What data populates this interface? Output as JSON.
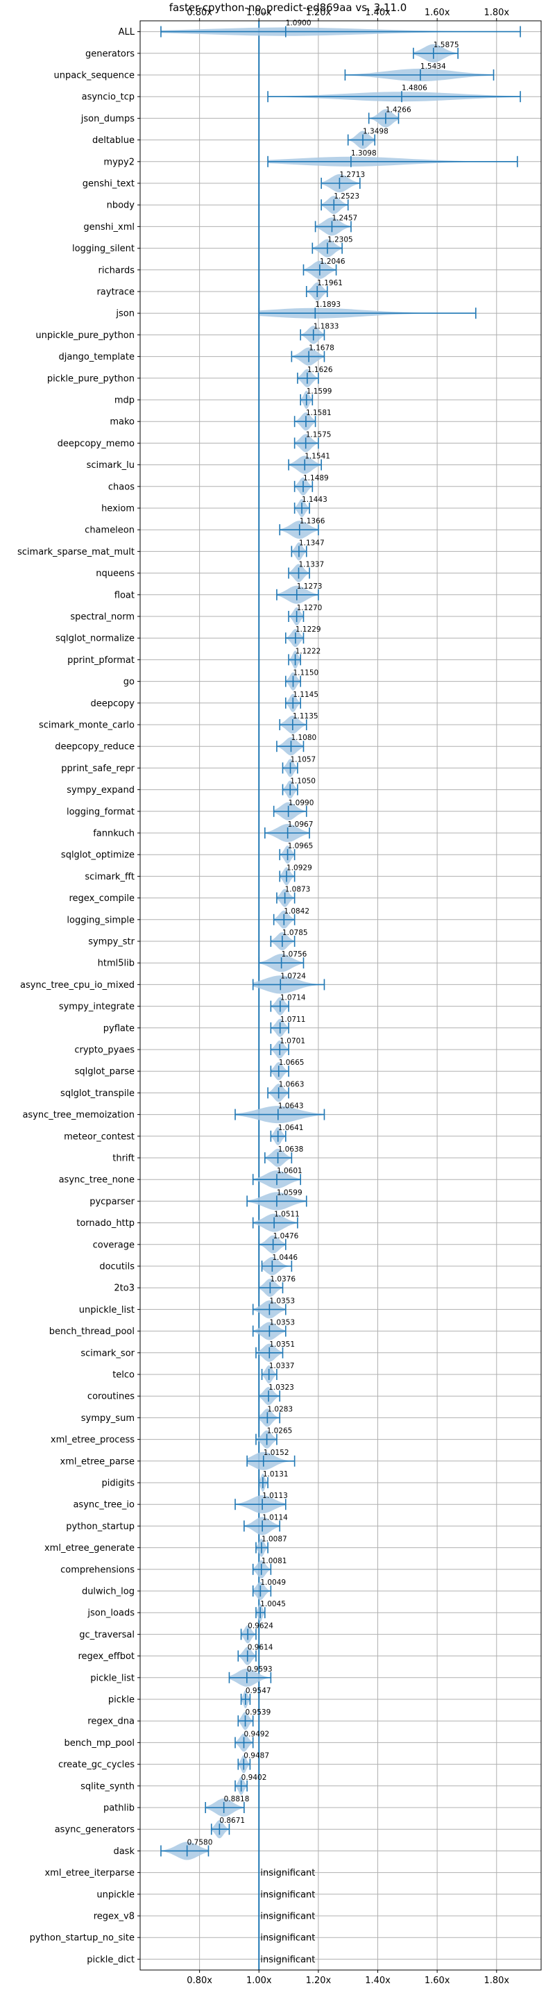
{
  "chart_data": {
    "type": "violin",
    "title": "faster-cpython-no_predict-ed869aa vs. 3.11.0",
    "x_tick_labels": [
      "0.80x",
      "1.00x",
      "1.20x",
      "1.40x",
      "1.60x",
      "1.80x"
    ],
    "x_ticks": [
      0.8,
      1.0,
      1.2,
      1.4,
      1.6,
      1.8
    ],
    "xlim": [
      0.6,
      1.95
    ],
    "reference_line": 1.0,
    "grid": true,
    "insignificant_label": "insignificant",
    "rows": [
      {
        "name": "ALL",
        "mean": 1.09,
        "label": "1.0900",
        "min": 0.67,
        "max": 1.88
      },
      {
        "name": "generators",
        "mean": 1.5875,
        "label": "1.5875",
        "min": 1.52,
        "max": 1.67
      },
      {
        "name": "unpack_sequence",
        "mean": 1.5434,
        "label": "1.5434",
        "min": 1.29,
        "max": 1.79
      },
      {
        "name": "asyncio_tcp",
        "mean": 1.4806,
        "label": "1.4806",
        "min": 1.03,
        "max": 1.88
      },
      {
        "name": "json_dumps",
        "mean": 1.4266,
        "label": "1.4266",
        "min": 1.37,
        "max": 1.47
      },
      {
        "name": "deltablue",
        "mean": 1.3498,
        "label": "1.3498",
        "min": 1.3,
        "max": 1.39
      },
      {
        "name": "mypy2",
        "mean": 1.3098,
        "label": "1.3098",
        "min": 1.03,
        "max": 1.87
      },
      {
        "name": "genshi_text",
        "mean": 1.2713,
        "label": "1.2713",
        "min": 1.21,
        "max": 1.34
      },
      {
        "name": "nbody",
        "mean": 1.2523,
        "label": "1.2523",
        "min": 1.21,
        "max": 1.3
      },
      {
        "name": "genshi_xml",
        "mean": 1.2457,
        "label": "1.2457",
        "min": 1.19,
        "max": 1.31
      },
      {
        "name": "logging_silent",
        "mean": 1.2305,
        "label": "1.2305",
        "min": 1.18,
        "max": 1.28
      },
      {
        "name": "richards",
        "mean": 1.2046,
        "label": "1.2046",
        "min": 1.15,
        "max": 1.26
      },
      {
        "name": "raytrace",
        "mean": 1.1961,
        "label": "1.1961",
        "min": 1.16,
        "max": 1.23
      },
      {
        "name": "json",
        "mean": 1.1893,
        "label": "1.1893",
        "min": 1.0,
        "max": 1.73
      },
      {
        "name": "unpickle_pure_python",
        "mean": 1.1833,
        "label": "1.1833",
        "min": 1.14,
        "max": 1.22
      },
      {
        "name": "django_template",
        "mean": 1.1678,
        "label": "1.1678",
        "min": 1.11,
        "max": 1.22
      },
      {
        "name": "pickle_pure_python",
        "mean": 1.1626,
        "label": "1.1626",
        "min": 1.13,
        "max": 1.2
      },
      {
        "name": "mdp",
        "mean": 1.1599,
        "label": "1.1599",
        "min": 1.14,
        "max": 1.18
      },
      {
        "name": "mako",
        "mean": 1.1581,
        "label": "1.1581",
        "min": 1.12,
        "max": 1.19
      },
      {
        "name": "deepcopy_memo",
        "mean": 1.1575,
        "label": "1.1575",
        "min": 1.12,
        "max": 1.2
      },
      {
        "name": "scimark_lu",
        "mean": 1.1541,
        "label": "1.1541",
        "min": 1.1,
        "max": 1.21
      },
      {
        "name": "chaos",
        "mean": 1.1489,
        "label": "1.1489",
        "min": 1.12,
        "max": 1.18
      },
      {
        "name": "hexiom",
        "mean": 1.1443,
        "label": "1.1443",
        "min": 1.12,
        "max": 1.17
      },
      {
        "name": "chameleon",
        "mean": 1.1366,
        "label": "1.1366",
        "min": 1.07,
        "max": 1.2
      },
      {
        "name": "scimark_sparse_mat_mult",
        "mean": 1.1347,
        "label": "1.1347",
        "min": 1.11,
        "max": 1.16
      },
      {
        "name": "nqueens",
        "mean": 1.1337,
        "label": "1.1337",
        "min": 1.1,
        "max": 1.17
      },
      {
        "name": "float",
        "mean": 1.1273,
        "label": "1.1273",
        "min": 1.06,
        "max": 1.2
      },
      {
        "name": "spectral_norm",
        "mean": 1.127,
        "label": "1.1270",
        "min": 1.1,
        "max": 1.15
      },
      {
        "name": "sqlglot_normalize",
        "mean": 1.1229,
        "label": "1.1229",
        "min": 1.09,
        "max": 1.15
      },
      {
        "name": "pprint_pformat",
        "mean": 1.1222,
        "label": "1.1222",
        "min": 1.1,
        "max": 1.14
      },
      {
        "name": "go",
        "mean": 1.115,
        "label": "1.1150",
        "min": 1.09,
        "max": 1.14
      },
      {
        "name": "deepcopy",
        "mean": 1.1145,
        "label": "1.1145",
        "min": 1.09,
        "max": 1.14
      },
      {
        "name": "scimark_monte_carlo",
        "mean": 1.1135,
        "label": "1.1135",
        "min": 1.07,
        "max": 1.16
      },
      {
        "name": "deepcopy_reduce",
        "mean": 1.108,
        "label": "1.1080",
        "min": 1.06,
        "max": 1.15
      },
      {
        "name": "pprint_safe_repr",
        "mean": 1.1057,
        "label": "1.1057",
        "min": 1.08,
        "max": 1.13
      },
      {
        "name": "sympy_expand",
        "mean": 1.105,
        "label": "1.1050",
        "min": 1.08,
        "max": 1.13
      },
      {
        "name": "logging_format",
        "mean": 1.099,
        "label": "1.0990",
        "min": 1.05,
        "max": 1.16
      },
      {
        "name": "fannkuch",
        "mean": 1.0967,
        "label": "1.0967",
        "min": 1.02,
        "max": 1.17
      },
      {
        "name": "sqlglot_optimize",
        "mean": 1.0965,
        "label": "1.0965",
        "min": 1.07,
        "max": 1.12
      },
      {
        "name": "scimark_fft",
        "mean": 1.0929,
        "label": "1.0929",
        "min": 1.07,
        "max": 1.12
      },
      {
        "name": "regex_compile",
        "mean": 1.0873,
        "label": "1.0873",
        "min": 1.06,
        "max": 1.12
      },
      {
        "name": "logging_simple",
        "mean": 1.0842,
        "label": "1.0842",
        "min": 1.05,
        "max": 1.12
      },
      {
        "name": "sympy_str",
        "mean": 1.0785,
        "label": "1.0785",
        "min": 1.04,
        "max": 1.12
      },
      {
        "name": "html5lib",
        "mean": 1.0756,
        "label": "1.0756",
        "min": 1.0,
        "max": 1.15
      },
      {
        "name": "async_tree_cpu_io_mixed",
        "mean": 1.0724,
        "label": "1.0724",
        "min": 0.98,
        "max": 1.22
      },
      {
        "name": "sympy_integrate",
        "mean": 1.0714,
        "label": "1.0714",
        "min": 1.04,
        "max": 1.1
      },
      {
        "name": "pyflate",
        "mean": 1.0711,
        "label": "1.0711",
        "min": 1.04,
        "max": 1.1
      },
      {
        "name": "crypto_pyaes",
        "mean": 1.0701,
        "label": "1.0701",
        "min": 1.04,
        "max": 1.1
      },
      {
        "name": "sqlglot_parse",
        "mean": 1.0665,
        "label": "1.0665",
        "min": 1.04,
        "max": 1.1
      },
      {
        "name": "sqlglot_transpile",
        "mean": 1.0663,
        "label": "1.0663",
        "min": 1.03,
        "max": 1.1
      },
      {
        "name": "async_tree_memoization",
        "mean": 1.0643,
        "label": "1.0643",
        "min": 0.92,
        "max": 1.22
      },
      {
        "name": "meteor_contest",
        "mean": 1.0641,
        "label": "1.0641",
        "min": 1.04,
        "max": 1.09
      },
      {
        "name": "thrift",
        "mean": 1.0638,
        "label": "1.0638",
        "min": 1.02,
        "max": 1.11
      },
      {
        "name": "async_tree_none",
        "mean": 1.0601,
        "label": "1.0601",
        "min": 0.98,
        "max": 1.14
      },
      {
        "name": "pycparser",
        "mean": 1.0599,
        "label": "1.0599",
        "min": 0.96,
        "max": 1.16
      },
      {
        "name": "tornado_http",
        "mean": 1.0511,
        "label": "1.0511",
        "min": 0.98,
        "max": 1.13
      },
      {
        "name": "coverage",
        "mean": 1.0476,
        "label": "1.0476",
        "min": 1.0,
        "max": 1.09
      },
      {
        "name": "docutils",
        "mean": 1.0446,
        "label": "1.0446",
        "min": 1.01,
        "max": 1.11
      },
      {
        "name": "2to3",
        "mean": 1.0376,
        "label": "1.0376",
        "min": 1.0,
        "max": 1.08
      },
      {
        "name": "unpickle_list",
        "mean": 1.0353,
        "label": "1.0353",
        "min": 0.98,
        "max": 1.09
      },
      {
        "name": "bench_thread_pool",
        "mean": 1.0353,
        "label": "1.0353",
        "min": 0.98,
        "max": 1.09
      },
      {
        "name": "scimark_sor",
        "mean": 1.0351,
        "label": "1.0351",
        "min": 0.99,
        "max": 1.08
      },
      {
        "name": "telco",
        "mean": 1.0337,
        "label": "1.0337",
        "min": 1.01,
        "max": 1.06
      },
      {
        "name": "coroutines",
        "mean": 1.0323,
        "label": "1.0323",
        "min": 1.0,
        "max": 1.07
      },
      {
        "name": "sympy_sum",
        "mean": 1.0283,
        "label": "1.0283",
        "min": 1.0,
        "max": 1.07
      },
      {
        "name": "xml_etree_process",
        "mean": 1.0265,
        "label": "1.0265",
        "min": 0.99,
        "max": 1.06
      },
      {
        "name": "xml_etree_parse",
        "mean": 1.0152,
        "label": "1.0152",
        "min": 0.96,
        "max": 1.12
      },
      {
        "name": "pidigits",
        "mean": 1.0131,
        "label": "1.0131",
        "min": 1.0,
        "max": 1.03
      },
      {
        "name": "async_tree_io",
        "mean": 1.0113,
        "label": "1.0113",
        "min": 0.92,
        "max": 1.09
      },
      {
        "name": "python_startup",
        "mean": 1.0114,
        "label": "1.0114",
        "min": 0.95,
        "max": 1.07
      },
      {
        "name": "xml_etree_generate",
        "mean": 1.0087,
        "label": "1.0087",
        "min": 0.99,
        "max": 1.03
      },
      {
        "name": "comprehensions",
        "mean": 1.0081,
        "label": "1.0081",
        "min": 0.98,
        "max": 1.04
      },
      {
        "name": "dulwich_log",
        "mean": 1.0049,
        "label": "1.0049",
        "min": 0.98,
        "max": 1.04
      },
      {
        "name": "json_loads",
        "mean": 1.0045,
        "label": "1.0045",
        "min": 0.99,
        "max": 1.02
      },
      {
        "name": "gc_traversal",
        "mean": 0.9624,
        "label": "0.9624",
        "min": 0.94,
        "max": 0.99
      },
      {
        "name": "regex_effbot",
        "mean": 0.9614,
        "label": "0.9614",
        "min": 0.93,
        "max": 0.99
      },
      {
        "name": "pickle_list",
        "mean": 0.9593,
        "label": "0.9593",
        "min": 0.9,
        "max": 1.04
      },
      {
        "name": "pickle",
        "mean": 0.9547,
        "label": "0.9547",
        "min": 0.94,
        "max": 0.97
      },
      {
        "name": "regex_dna",
        "mean": 0.9539,
        "label": "0.9539",
        "min": 0.93,
        "max": 0.98
      },
      {
        "name": "bench_mp_pool",
        "mean": 0.9492,
        "label": "0.9492",
        "min": 0.92,
        "max": 0.98
      },
      {
        "name": "create_gc_cycles",
        "mean": 0.9487,
        "label": "0.9487",
        "min": 0.93,
        "max": 0.97
      },
      {
        "name": "sqlite_synth",
        "mean": 0.9402,
        "label": "0.9402",
        "min": 0.92,
        "max": 0.96
      },
      {
        "name": "pathlib",
        "mean": 0.8818,
        "label": "0.8818",
        "min": 0.82,
        "max": 0.95
      },
      {
        "name": "async_generators",
        "mean": 0.8671,
        "label": "0.8671",
        "min": 0.84,
        "max": 0.9
      },
      {
        "name": "dask",
        "mean": 0.758,
        "label": "0.7580",
        "min": 0.67,
        "max": 0.83
      },
      {
        "name": "xml_etree_iterparse",
        "insignificant": true
      },
      {
        "name": "unpickle",
        "insignificant": true
      },
      {
        "name": "regex_v8",
        "insignificant": true
      },
      {
        "name": "python_startup_no_site",
        "insignificant": true
      },
      {
        "name": "pickle_dict",
        "insignificant": true
      }
    ]
  },
  "colors": {
    "violin_fill": "#a9c9e4",
    "line": "#1f77b4",
    "grid": "#b0b0b0",
    "text": "#000000"
  }
}
